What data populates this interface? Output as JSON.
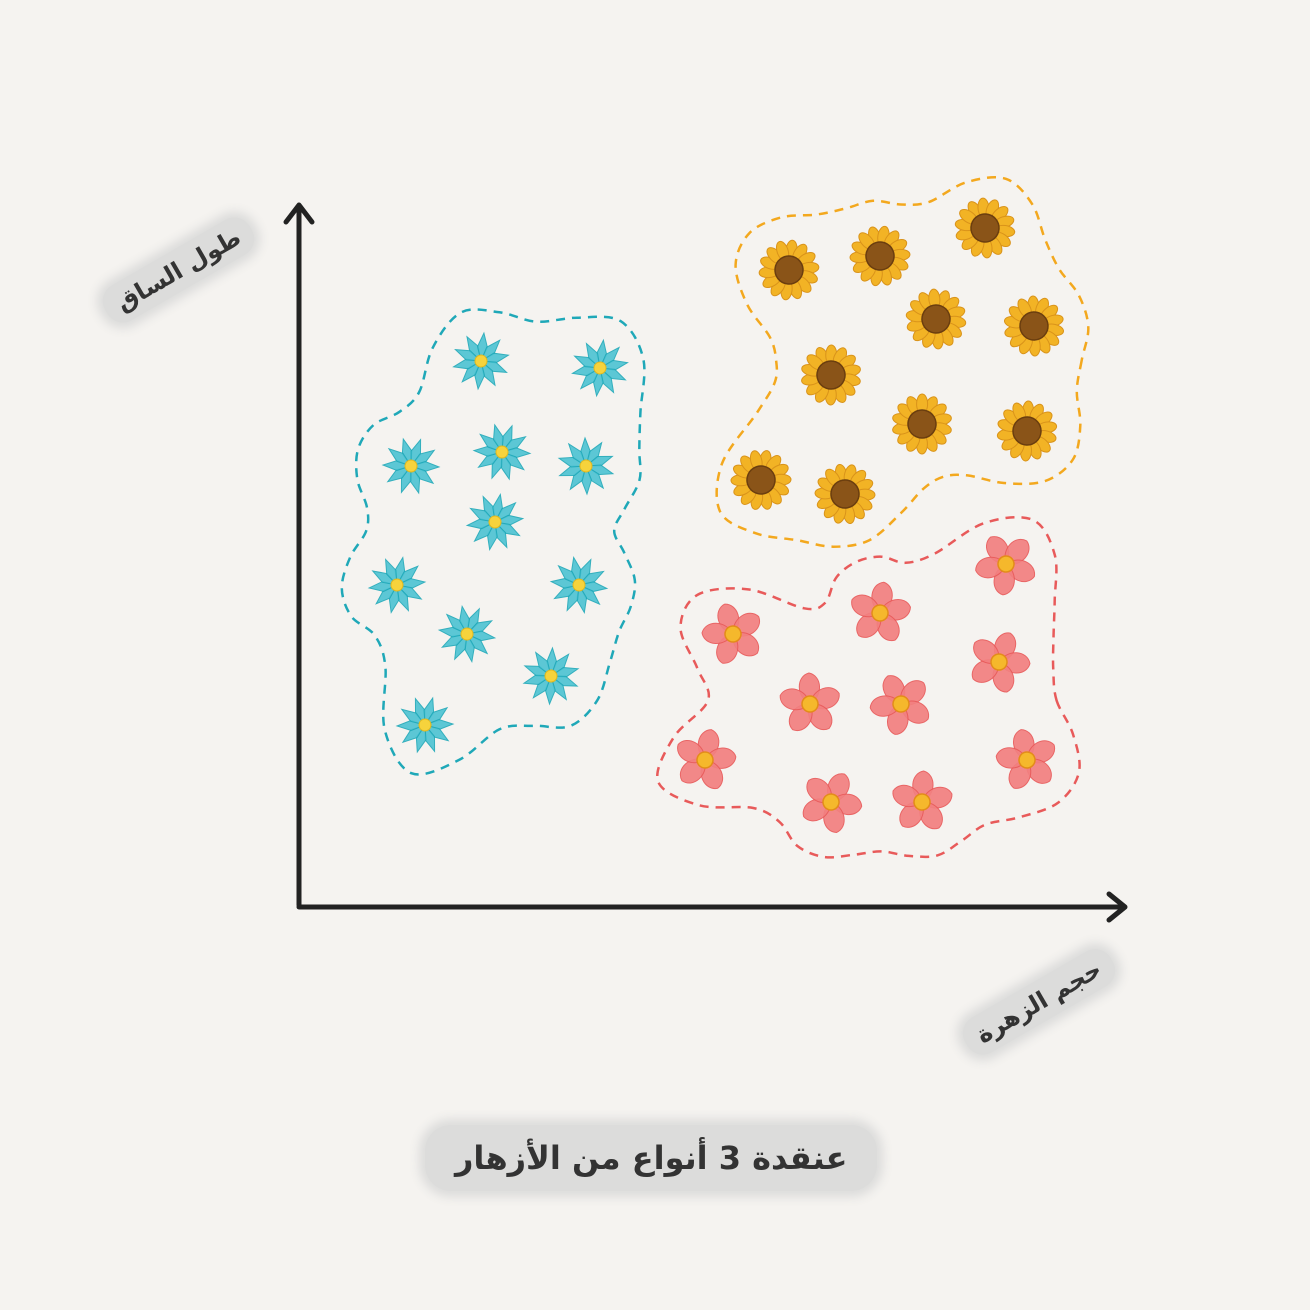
{
  "chart_data": {
    "type": "scatter",
    "title": "عنقدة 3 أنواع من الأزهار",
    "xlabel": "حجم الزهرة",
    "ylabel": "طول الساق",
    "grid": false,
    "series": [
      {
        "color": "#4cc3d3",
        "icon": "blue-star-flower-icon",
        "outline_color": "#1fa8b8",
        "points": [
          [
            2.6,
            7.8
          ],
          [
            4.3,
            7.7
          ],
          [
            1.6,
            6.3
          ],
          [
            2.9,
            6.5
          ],
          [
            4.1,
            6.3
          ],
          [
            2.8,
            5.5
          ],
          [
            1.4,
            4.6
          ],
          [
            4.0,
            4.6
          ],
          [
            2.4,
            3.9
          ],
          [
            3.6,
            3.3
          ],
          [
            1.8,
            2.6
          ]
        ]
      },
      {
        "color": "#f2b325",
        "icon": "sunflower-icon",
        "outline_color": "#f3a81e",
        "points": [
          [
            9.8,
            9.7
          ],
          [
            7.0,
            9.1
          ],
          [
            8.3,
            9.3
          ],
          [
            9.1,
            8.4
          ],
          [
            10.5,
            8.3
          ],
          [
            7.6,
            7.6
          ],
          [
            6.6,
            6.1
          ],
          [
            7.8,
            5.9
          ],
          [
            8.9,
            6.9
          ],
          [
            10.4,
            6.8
          ]
        ]
      },
      {
        "color": "#f28080",
        "icon": "pink-petal-flower-icon",
        "outline_color": "#e85a5a",
        "points": [
          [
            10.1,
            4.9
          ],
          [
            8.3,
            4.2
          ],
          [
            6.2,
            3.9
          ],
          [
            10.0,
            3.5
          ],
          [
            7.3,
            2.9
          ],
          [
            8.6,
            2.9
          ],
          [
            5.8,
            2.1
          ],
          [
            10.4,
            2.1
          ],
          [
            7.6,
            1.5
          ],
          [
            8.9,
            1.5
          ]
        ]
      }
    ]
  }
}
